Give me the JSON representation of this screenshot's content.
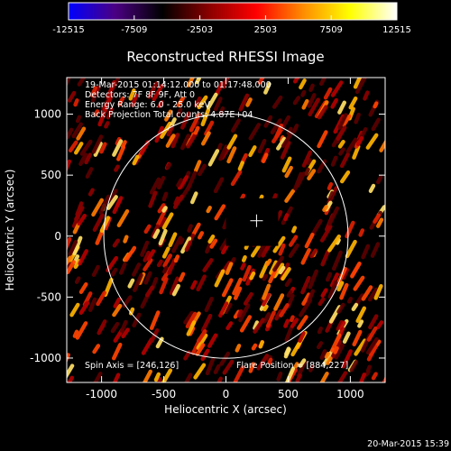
{
  "colorbar": {
    "tick_labels": [
      "-12515",
      "-7509",
      "-2503",
      "2503",
      "7509",
      "12515"
    ],
    "tick_values": [
      -12515,
      -7509,
      -2503,
      2503,
      7509,
      12515
    ],
    "range": [
      -12515,
      12515
    ],
    "colormap_stops": [
      "#0000ff",
      "#4b0082",
      "#000000",
      "#8b0000",
      "#ff0000",
      "#ff8c00",
      "#ffff00",
      "#ffffff"
    ]
  },
  "title": "Reconstructed RHESSI Image",
  "annotations": {
    "time_range": "19-Mar-2015 01:14:12.000 to 01:17:48.000",
    "detectors": "Detectors: 7F 8F 9F, Att 0",
    "energy_range": "Energy Range: 6.0 - 25.0 keV",
    "method_counts": "Back Projection   Total counts: 4.87E+04",
    "spin_axis": "Spin Axis = [246,126]",
    "flare_position": "Flare Position = [884,227]"
  },
  "axes": {
    "xlabel": "Heliocentric X (arcsec)",
    "ylabel": "Heliocentric Y (arcsec)",
    "xlim": [
      -1280,
      1280
    ],
    "ylim": [
      -1200,
      1300
    ],
    "xticks": [
      -1000,
      -500,
      0,
      500,
      1000
    ],
    "xtick_labels": [
      "-1000",
      "-500",
      "0",
      "500",
      "1000"
    ],
    "yticks": [
      -1000,
      -500,
      0,
      500,
      1000
    ],
    "ytick_labels": [
      "-1000",
      "-500",
      "0",
      "500",
      "1000"
    ]
  },
  "solar_limb_radius_arcsec": 982,
  "spin_axis_marker": [
    246,
    126
  ],
  "occulted_box": {
    "x": [
      0,
      420
    ],
    "y": [
      -80,
      310
    ]
  },
  "colors": {
    "limb": "#ffffff",
    "axes": "#ffffff",
    "background": "#000000"
  },
  "timestamp": "20-Mar-2015 15:39"
}
